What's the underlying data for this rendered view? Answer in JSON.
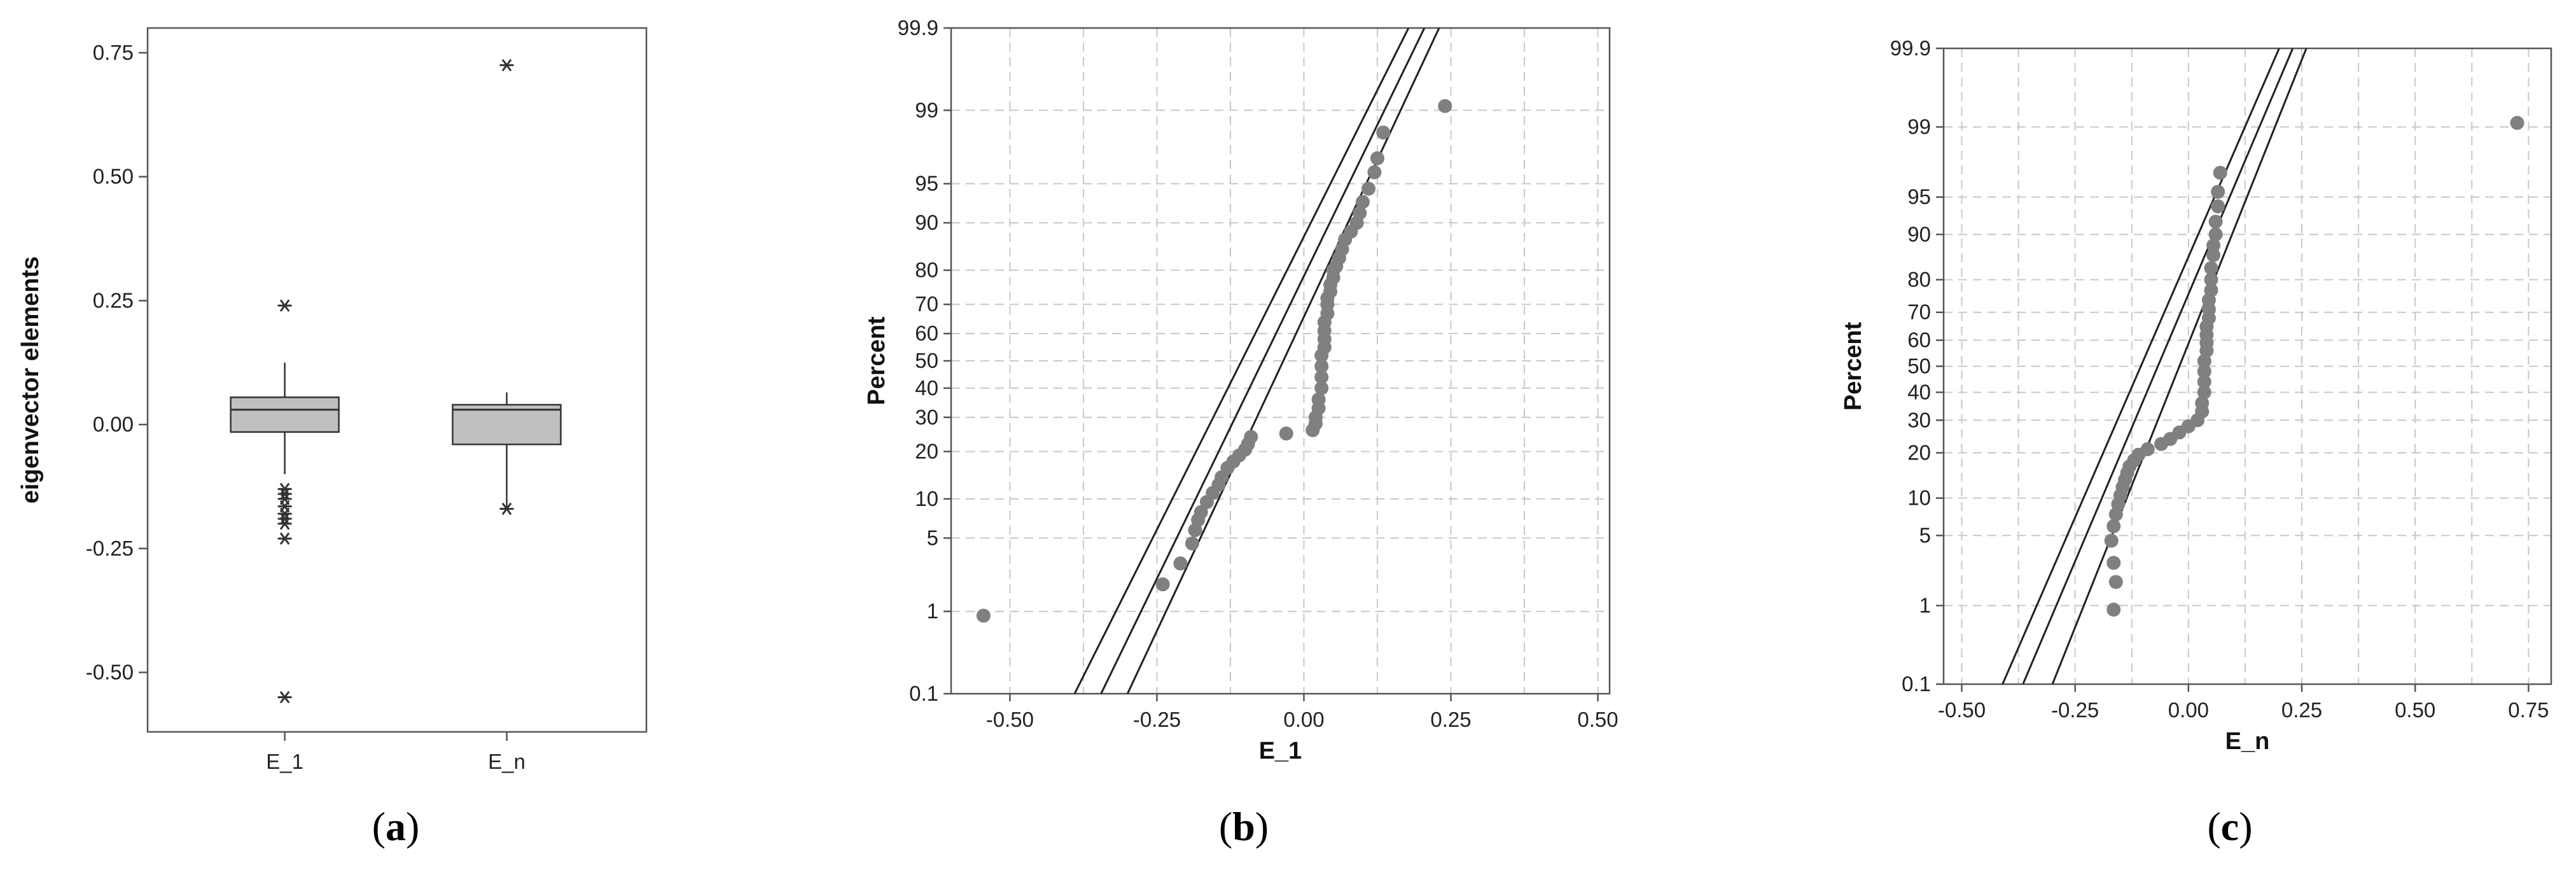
{
  "chart_data": [
    {
      "type": "box",
      "panel_label": "a",
      "ylabel": "eigenvector elements",
      "xlabel": "",
      "categories": [
        "E_1",
        "E_n"
      ],
      "ylim": [
        -0.62,
        0.8
      ],
      "yticks": [
        -0.5,
        -0.25,
        0.0,
        0.25,
        0.5,
        0.75
      ],
      "ytick_labels": [
        "-0.50",
        "-0.25",
        "0.00",
        "0.25",
        "0.50",
        "0.75"
      ],
      "grid": false,
      "boxes": [
        {
          "name": "E_1",
          "q1": -0.015,
          "median": 0.03,
          "q3": 0.055,
          "whisker_low": -0.1,
          "whisker_high": 0.125,
          "outliers": [
            0.24,
            -0.13,
            -0.14,
            -0.15,
            -0.165,
            -0.18,
            -0.19,
            -0.2,
            -0.23,
            -0.55
          ]
        },
        {
          "name": "E_n",
          "q1": -0.04,
          "median": 0.03,
          "q3": 0.04,
          "whisker_low": -0.17,
          "whisker_high": 0.065,
          "outliers": [
            0.725,
            -0.17
          ]
        }
      ],
      "colors": {
        "box": "#c0c0c0",
        "line": "#333333"
      }
    },
    {
      "type": "scatter",
      "subtype": "normal-probability-plot",
      "panel_label": "b",
      "xlabel": "E_1",
      "ylabel": "Percent",
      "xlim": [
        -0.6,
        0.52
      ],
      "xticks": [
        -0.5,
        -0.25,
        0.0,
        0.25,
        0.5
      ],
      "xtick_labels": [
        "-0.50",
        "-0.25",
        "0.00",
        "0.25",
        "0.50"
      ],
      "yticks": [
        0.1,
        1,
        5,
        10,
        20,
        30,
        40,
        50,
        60,
        70,
        80,
        90,
        95,
        99,
        99.9
      ],
      "ytick_labels": [
        "0.1",
        "1",
        "5",
        "10",
        "20",
        "30",
        "40",
        "50",
        "60",
        "70",
        "80",
        "90",
        "95",
        "99",
        "99.9"
      ],
      "ylim": [
        0.1,
        99.9
      ],
      "grid": true,
      "fit_lines": [
        {
          "x": [
            -0.39,
            0.178
          ],
          "y": [
            0.1,
            99.9
          ]
        },
        {
          "x": [
            -0.345,
            0.205
          ],
          "y": [
            0.1,
            99.9
          ]
        },
        {
          "x": [
            -0.3,
            0.23
          ],
          "y": [
            0.1,
            99.9
          ]
        }
      ],
      "points": {
        "x": [
          -0.545,
          -0.24,
          -0.21,
          -0.19,
          -0.185,
          -0.18,
          -0.175,
          -0.165,
          -0.155,
          -0.145,
          -0.14,
          -0.13,
          -0.12,
          -0.11,
          -0.1,
          -0.095,
          -0.09,
          -0.03,
          0.015,
          0.02,
          0.02,
          0.025,
          0.025,
          0.03,
          0.03,
          0.03,
          0.03,
          0.035,
          0.035,
          0.035,
          0.035,
          0.04,
          0.04,
          0.04,
          0.045,
          0.045,
          0.05,
          0.05,
          0.055,
          0.06,
          0.065,
          0.07,
          0.08,
          0.09,
          0.095,
          0.1,
          0.11,
          0.12,
          0.125,
          0.135,
          0.24
        ],
        "y": [
          0.9,
          1.9,
          3.0,
          4.5,
          5.8,
          7.0,
          8.0,
          9.5,
          11,
          12.5,
          14,
          16,
          17.5,
          19,
          20.5,
          22,
          24,
          25,
          26,
          28,
          30,
          33,
          36,
          40,
          44,
          48,
          52,
          55,
          58,
          61,
          64,
          67,
          70,
          72,
          74,
          76,
          78,
          80,
          81,
          83,
          85,
          87,
          88.5,
          90,
          91.5,
          93,
          94.5,
          96,
          97,
          98.3,
          99.1
        ]
      },
      "colors": {
        "points": "#808080",
        "lines": "#222222",
        "grid": "#c8c8c8"
      }
    },
    {
      "type": "scatter",
      "subtype": "normal-probability-plot",
      "panel_label": "c",
      "xlabel": "E_n",
      "ylabel": "Percent",
      "xlim": [
        -0.54,
        0.8
      ],
      "xticks": [
        -0.5,
        -0.25,
        0.0,
        0.25,
        0.5,
        0.75
      ],
      "xtick_labels": [
        "-0.50",
        "-0.25",
        "0.00",
        "0.25",
        "0.50",
        "0.75"
      ],
      "yticks": [
        0.1,
        1,
        5,
        10,
        20,
        30,
        40,
        50,
        60,
        70,
        80,
        90,
        95,
        99,
        99.9
      ],
      "ytick_labels": [
        "0.1",
        "1",
        "5",
        "10",
        "20",
        "30",
        "40",
        "50",
        "60",
        "70",
        "80",
        "90",
        "95",
        "99",
        "99.9"
      ],
      "ylim": [
        0.1,
        99.9
      ],
      "grid": true,
      "fit_lines": [
        {
          "x": [
            -0.41,
            0.2
          ],
          "y": [
            0.1,
            99.9
          ]
        },
        {
          "x": [
            -0.365,
            0.23
          ],
          "y": [
            0.1,
            99.9
          ]
        },
        {
          "x": [
            -0.3,
            0.26
          ],
          "y": [
            0.1,
            99.9
          ]
        }
      ],
      "points": {
        "x": [
          -0.165,
          -0.16,
          -0.165,
          -0.17,
          -0.165,
          -0.16,
          -0.155,
          -0.15,
          -0.145,
          -0.14,
          -0.135,
          -0.13,
          -0.12,
          -0.11,
          -0.09,
          -0.06,
          -0.04,
          -0.02,
          0.0,
          0.02,
          0.03,
          0.03,
          0.035,
          0.035,
          0.035,
          0.035,
          0.04,
          0.04,
          0.04,
          0.04,
          0.045,
          0.045,
          0.045,
          0.05,
          0.05,
          0.05,
          0.055,
          0.055,
          0.06,
          0.06,
          0.065,
          0.065,
          0.07,
          0.725
        ],
        "y": [
          0.9,
          1.8,
          2.8,
          4.5,
          6.0,
          7.5,
          9.0,
          10.5,
          12,
          13.5,
          15,
          16.5,
          18,
          19.5,
          21,
          22.5,
          24,
          26,
          28,
          30,
          33,
          36,
          40,
          44,
          48,
          52,
          56,
          59,
          62,
          65,
          68,
          71,
          74,
          77,
          80,
          83,
          86,
          88,
          90,
          92,
          94,
          95.5,
          97,
          99.1
        ]
      },
      "colors": {
        "points": "#808080",
        "lines": "#222222",
        "grid": "#c8c8c8"
      }
    }
  ]
}
